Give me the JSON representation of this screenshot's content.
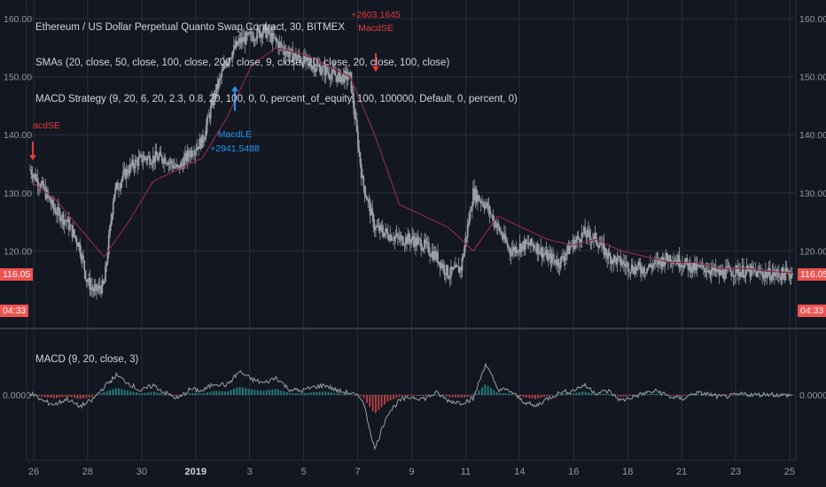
{
  "colors": {
    "background": "#131722",
    "grid": "#2a2e39",
    "candle": "#9aa0a6",
    "sma": "#8e2a44",
    "macd_line": "#9aa0a6",
    "hist_pos": "#26a69a",
    "hist_neg": "#ef5350",
    "short_signal": "#e53935",
    "long_signal": "#2196f3",
    "price_tag": "#ef5350"
  },
  "legend": {
    "title": "Ethereum / US Dollar Perpetual Quanto Swap Contract, 30, BITMEX",
    "smas": "SMAs (20, close, 50, close, 100, close, 200, close, 9, close, 20, close, 20, close, 100, close)",
    "strategy": "MACD Strategy (9, 20, 6, 20, 2.3, 0.8, 20, 100, 0, 0, percent_of_equity, 100, 100000, Default, 0, percent, 0)",
    "macd": "MACD (9, 20, close, 3)"
  },
  "price_tag": {
    "value": "116.05",
    "countdown": "04:33"
  },
  "signals": [
    {
      "label": "acdSE",
      "value": "",
      "type": "short"
    },
    {
      "label": "MacdLE",
      "value": "+2941.5488",
      "type": "long"
    },
    {
      "label": "MacdSE",
      "value": "+2603.1645",
      "type": "short"
    }
  ],
  "chart_data": [
    {
      "type": "line",
      "title": "Ethereum / US Dollar Perpetual Quanto Swap Contract, 30, BITMEX",
      "xlabel": "",
      "ylabel": "",
      "ylim": [
        108,
        162
      ],
      "yticks": [
        "160.00",
        "150.00",
        "140.00",
        "130.00",
        "120.00"
      ],
      "xticks": [
        "26",
        "28",
        "30",
        "2019",
        "3",
        "5",
        "7",
        "9",
        "11",
        "14",
        "16",
        "18",
        "21",
        "23",
        "25"
      ],
      "grid": true,
      "last_price": 116.05,
      "series": [
        {
          "name": "",
          "kind": "price",
          "x": [
            0,
            0.5,
            1,
            1.5,
            2,
            2.3,
            2.6,
            3,
            3.4,
            3.8,
            4.2,
            4.6,
            5,
            5.5,
            6,
            6.5,
            7,
            7.5,
            8,
            8.5,
            9,
            9.5,
            10,
            10.5,
            11,
            11.5,
            12,
            12.5,
            13,
            13.5,
            14,
            14.5,
            15,
            15.5,
            16,
            16.5,
            17,
            17.5,
            18,
            18.5,
            19,
            19.5,
            20,
            20.5,
            21,
            21.5,
            22,
            22.5,
            23,
            23.5,
            24,
            24.5,
            25,
            25.5,
            26,
            26.5,
            27,
            27.5,
            28,
            28.5,
            29,
            29.5,
            30,
            30.5,
            31
          ],
          "y": [
            134,
            131,
            127,
            125,
            121,
            115,
            113,
            114,
            130,
            133,
            135,
            136,
            136,
            136,
            134,
            137,
            139,
            147,
            153,
            156,
            157,
            158,
            156,
            154,
            153,
            152,
            151,
            150,
            150,
            132,
            124,
            123,
            122,
            122,
            121,
            119,
            116,
            117,
            130,
            128,
            124,
            120,
            121,
            121,
            119,
            118,
            121,
            123,
            122,
            119,
            118,
            117,
            117,
            118,
            119,
            118,
            117,
            117,
            116,
            116.5,
            116.5,
            116.2,
            116,
            116,
            116.05
          ]
        },
        {
          "name": "",
          "kind": "sma",
          "x": [
            0,
            1,
            2,
            3,
            4,
            5,
            6,
            7,
            8,
            9,
            10,
            11,
            12,
            13,
            14,
            15,
            16,
            17,
            18,
            19,
            20,
            21,
            22,
            23,
            24,
            25,
            26,
            27,
            28,
            29,
            30,
            31
          ],
          "y": [
            132,
            129,
            124,
            119,
            125,
            132,
            134,
            136,
            143,
            152,
            155,
            154,
            152,
            150,
            140,
            128,
            126,
            124,
            120,
            126,
            124,
            122,
            121,
            122,
            120,
            119,
            118,
            118,
            117,
            117,
            116.5,
            116.2
          ]
        }
      ]
    },
    {
      "type": "line",
      "title": "MACD (9, 20, close, 3)",
      "ylim": [
        -3,
        3
      ],
      "yticks": [
        "0.0000"
      ],
      "series": [
        {
          "name": "",
          "kind": "macd",
          "x": [
            0,
            0.5,
            1,
            1.5,
            2,
            2.5,
            3,
            3.5,
            4,
            4.5,
            5,
            5.5,
            6,
            6.5,
            7,
            7.5,
            8,
            8.5,
            9,
            9.5,
            10,
            10.5,
            11,
            11.5,
            12,
            12.5,
            13,
            13.5,
            14,
            14.5,
            15,
            15.5,
            16,
            16.5,
            17,
            17.5,
            18,
            18.5,
            19,
            19.5,
            20,
            20.5,
            21,
            21.5,
            22,
            22.5,
            23,
            23.5,
            24,
            24.5,
            25,
            25.5,
            26,
            26.5,
            27,
            27.5,
            28,
            28.5,
            29,
            29.5,
            30,
            30.5,
            31
          ],
          "y": [
            0.1,
            -0.3,
            -0.5,
            -0.2,
            -0.6,
            -0.3,
            0.4,
            1.0,
            0.6,
            0.2,
            0.5,
            0.1,
            -0.2,
            0.3,
            0.2,
            0.6,
            0.5,
            1.2,
            0.8,
            0.6,
            0.9,
            0.3,
            0.2,
            0.4,
            0.5,
            0.2,
            0.1,
            -0.2,
            -2.8,
            -1.0,
            -0.3,
            -0.1,
            -0.2,
            0.1,
            -0.3,
            -0.4,
            -0.2,
            1.6,
            0.3,
            0.2,
            -0.3,
            -0.6,
            -0.2,
            0.1,
            0.2,
            0.5,
            0.1,
            0.2,
            -0.3,
            -0.1,
            0.1,
            0.2,
            -0.1,
            -0.2,
            0.1,
            0.05,
            -0.1,
            -0.05,
            0.05,
            0.0,
            0.05,
            -0.02,
            0.0
          ]
        }
      ]
    }
  ]
}
